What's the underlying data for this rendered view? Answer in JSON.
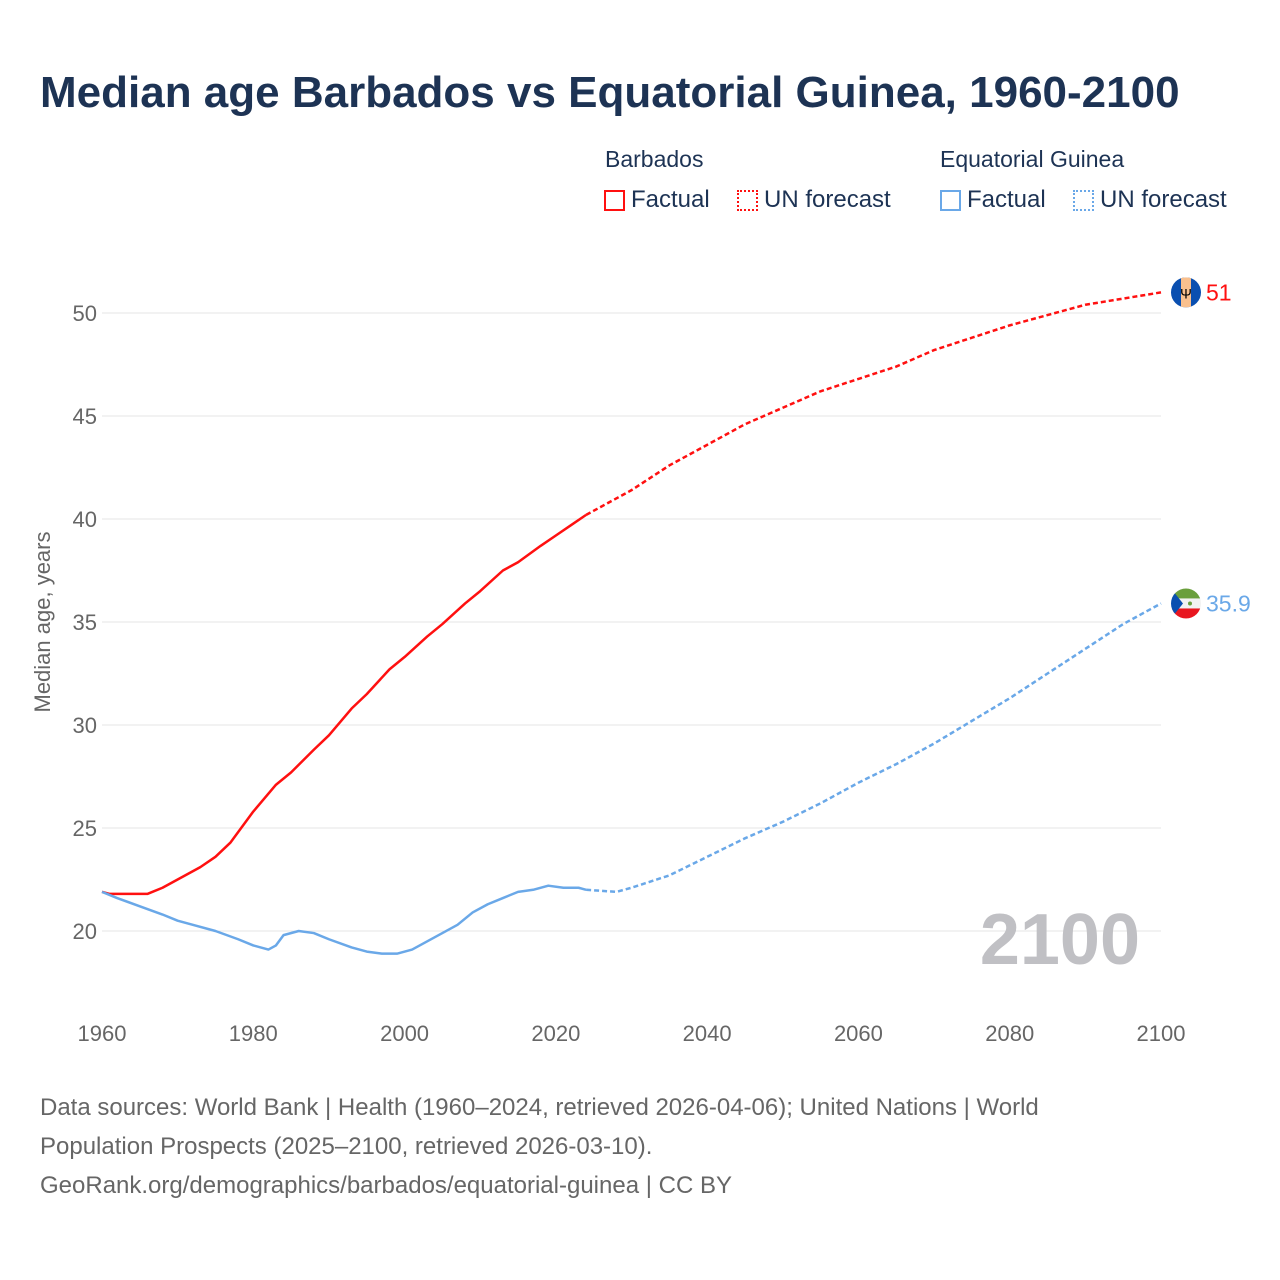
{
  "title": "Median age Barbados vs Equatorial Guinea, 1960-2100",
  "legend": {
    "groups": [
      {
        "name": "Barbados",
        "factual": "Factual",
        "forecast": "UN forecast",
        "color": "#ff1010"
      },
      {
        "name": "Equatorial Guinea",
        "factual": "Factual",
        "forecast": "UN forecast",
        "color": "#6aa8e8"
      }
    ]
  },
  "footer": {
    "line1": "Data sources: World Bank | Health (1960–2024, retrieved 2026-04-06); United Nations | World",
    "line2": "Population Prospects (2025–2100, retrieved 2026-03-10).",
    "line3": "GeoRank.org/demographics/barbados/equatorial-guinea | CC BY"
  },
  "chart_data": {
    "type": "line",
    "title": "Median age Barbados vs Equatorial Guinea, 1960-2100",
    "xlabel": "",
    "ylabel": "Median age, years",
    "xlim": [
      1960,
      2100
    ],
    "ylim": [
      17,
      53
    ],
    "xticks": [
      "1960",
      "1980",
      "2000",
      "2020",
      "2040",
      "2060",
      "2080",
      "2100"
    ],
    "yticks": [
      "20",
      "25",
      "30",
      "35",
      "40",
      "45",
      "50"
    ],
    "year_watermark": "2100",
    "series": [
      {
        "name": "Barbados",
        "color": "#ff1010",
        "end_label": "51",
        "flag": "barbados",
        "factual": {
          "x": [
            1960,
            1961,
            1966,
            1968,
            1970,
            1973,
            1975,
            1977,
            1980,
            1983,
            1985,
            1988,
            1990,
            1993,
            1995,
            1998,
            2000,
            2003,
            2005,
            2008,
            2010,
            2013,
            2015,
            2018,
            2020,
            2022,
            2024
          ],
          "y": [
            21.9,
            21.8,
            21.8,
            22.1,
            22.5,
            23.1,
            23.6,
            24.3,
            25.8,
            27.1,
            27.7,
            28.8,
            29.5,
            30.8,
            31.5,
            32.7,
            33.3,
            34.3,
            34.9,
            35.9,
            36.5,
            37.5,
            37.9,
            38.7,
            39.2,
            39.7,
            40.2
          ]
        },
        "forecast": {
          "x": [
            2024,
            2030,
            2035,
            2040,
            2045,
            2050,
            2055,
            2060,
            2065,
            2070,
            2075,
            2080,
            2085,
            2090,
            2095,
            2100
          ],
          "y": [
            40.2,
            41.4,
            42.6,
            43.6,
            44.6,
            45.4,
            46.2,
            46.8,
            47.4,
            48.2,
            48.8,
            49.4,
            49.9,
            50.4,
            50.7,
            51.0
          ]
        }
      },
      {
        "name": "Equatorial Guinea",
        "color": "#6aa8e8",
        "end_label": "35.9",
        "flag": "equatorial-guinea",
        "factual": {
          "x": [
            1960,
            1962,
            1965,
            1968,
            1970,
            1972,
            1975,
            1978,
            1980,
            1982,
            1983,
            1984,
            1986,
            1988,
            1990,
            1993,
            1995,
            1997,
            1999,
            2001,
            2003,
            2005,
            2007,
            2009,
            2011,
            2013,
            2015,
            2017,
            2019,
            2021,
            2023,
            2024
          ],
          "y": [
            21.9,
            21.6,
            21.2,
            20.8,
            20.5,
            20.3,
            20.0,
            19.6,
            19.3,
            19.1,
            19.3,
            19.8,
            20.0,
            19.9,
            19.6,
            19.2,
            19.0,
            18.9,
            18.9,
            19.1,
            19.5,
            19.9,
            20.3,
            20.9,
            21.3,
            21.6,
            21.9,
            22.0,
            22.2,
            22.1,
            22.1,
            22.0
          ]
        },
        "forecast": {
          "x": [
            2024,
            2028,
            2030,
            2035,
            2040,
            2045,
            2050,
            2055,
            2060,
            2065,
            2070,
            2075,
            2080,
            2085,
            2090,
            2095,
            2100
          ],
          "y": [
            22.0,
            21.9,
            22.1,
            22.7,
            23.6,
            24.5,
            25.3,
            26.2,
            27.2,
            28.1,
            29.1,
            30.2,
            31.3,
            32.5,
            33.7,
            34.9,
            35.9
          ]
        }
      }
    ]
  }
}
